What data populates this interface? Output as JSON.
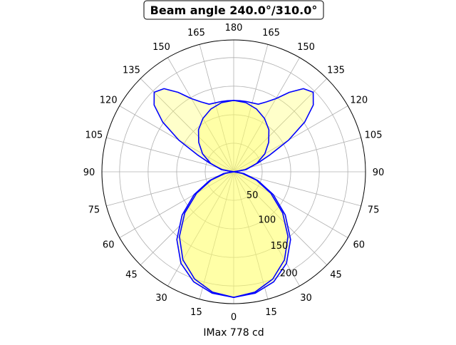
{
  "chart_data": {
    "type": "polar",
    "title": "Beam angle 240.0°/310.0°",
    "xlabel": "IMax 778 cd",
    "angle_ticks": [
      "0",
      "15",
      "30",
      "45",
      "60",
      "75",
      "90",
      "105",
      "120",
      "135",
      "150",
      "165",
      "180"
    ],
    "radial_ticks": [
      50,
      100,
      150,
      200
    ],
    "rlim": [
      0,
      231
    ],
    "grid": true,
    "colors": {
      "line": "#0000ff",
      "fill": "#ffff66",
      "grid": "#b0b0b0"
    },
    "series": [
      {
        "angles": [
          0,
          10,
          20,
          30,
          40,
          50,
          60,
          70,
          80,
          90,
          100,
          110,
          115,
          120,
          125,
          130,
          135,
          140,
          145,
          150,
          155,
          160,
          165,
          170,
          175,
          180
        ],
        "values": [
          220,
          216,
          205,
          185,
          155,
          118,
          80,
          45,
          18,
          0,
          20,
          45,
          70,
          111,
          152,
          182,
          197,
          190,
          170,
          148,
          135,
          126,
          125,
          125,
          125,
          125
        ]
      },
      {
        "angles": [
          0,
          10,
          20,
          30,
          40,
          50,
          60,
          70,
          80,
          90,
          100,
          110,
          120,
          130,
          140,
          150,
          160,
          170,
          180
        ],
        "values": [
          220,
          214,
          200,
          178,
          148,
          112,
          75,
          42,
          15,
          0,
          22,
          43,
          63,
          80,
          96,
          108,
          117,
          123,
          125
        ]
      }
    ]
  }
}
